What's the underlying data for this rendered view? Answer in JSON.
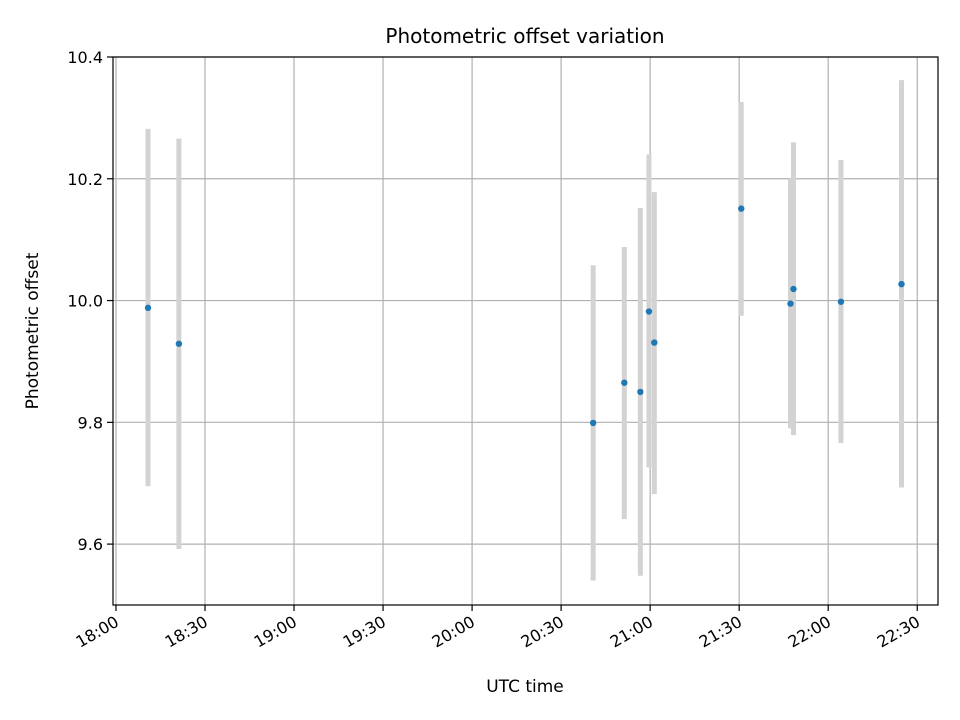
{
  "chart_data": {
    "type": "scatter",
    "title": "Photometric offset variation",
    "xlabel": "UTC time",
    "ylabel": "Photometric offset",
    "x_unit": "minutes after 18:00 UTC",
    "xlim": [
      -1,
      277
    ],
    "ylim": [
      9.5,
      10.4
    ],
    "grid": true,
    "x_ticks": [
      {
        "value": 0,
        "label": "18:00"
      },
      {
        "value": 30,
        "label": "18:30"
      },
      {
        "value": 60,
        "label": "19:00"
      },
      {
        "value": 90,
        "label": "19:30"
      },
      {
        "value": 120,
        "label": "20:00"
      },
      {
        "value": 150,
        "label": "20:30"
      },
      {
        "value": 180,
        "label": "21:00"
      },
      {
        "value": 210,
        "label": "21:30"
      },
      {
        "value": 240,
        "label": "22:00"
      },
      {
        "value": 270,
        "label": "22:30"
      }
    ],
    "y_ticks": [
      {
        "value": 9.6,
        "label": "9.6"
      },
      {
        "value": 9.8,
        "label": "9.8"
      },
      {
        "value": 10.0,
        "label": "10.0"
      },
      {
        "value": 10.2,
        "label": "10.2"
      },
      {
        "value": 10.4,
        "label": "10.4"
      }
    ],
    "point_color": "#1f77b4",
    "errorbar_color": "#d3d3d3",
    "points": [
      {
        "t": 10.8,
        "y": 9.988,
        "err_low": 9.695,
        "err_high": 10.282
      },
      {
        "t": 21.2,
        "y": 9.929,
        "err_low": 9.592,
        "err_high": 10.266
      },
      {
        "t": 160.8,
        "y": 9.799,
        "err_low": 9.54,
        "err_high": 10.058
      },
      {
        "t": 171.3,
        "y": 9.865,
        "err_low": 9.641,
        "err_high": 10.088
      },
      {
        "t": 176.7,
        "y": 9.85,
        "err_low": 9.548,
        "err_high": 10.152
      },
      {
        "t": 179.6,
        "y": 9.982,
        "err_low": 9.726,
        "err_high": 10.24
      },
      {
        "t": 181.4,
        "y": 9.931,
        "err_low": 9.682,
        "err_high": 10.178
      },
      {
        "t": 210.7,
        "y": 10.151,
        "err_low": 9.975,
        "err_high": 10.326
      },
      {
        "t": 227.3,
        "y": 9.995,
        "err_low": 9.79,
        "err_high": 10.2
      },
      {
        "t": 228.3,
        "y": 10.019,
        "err_low": 9.779,
        "err_high": 10.26
      },
      {
        "t": 244.3,
        "y": 9.998,
        "err_low": 9.766,
        "err_high": 10.231
      },
      {
        "t": 264.7,
        "y": 10.027,
        "err_low": 9.693,
        "err_high": 10.362
      }
    ]
  }
}
